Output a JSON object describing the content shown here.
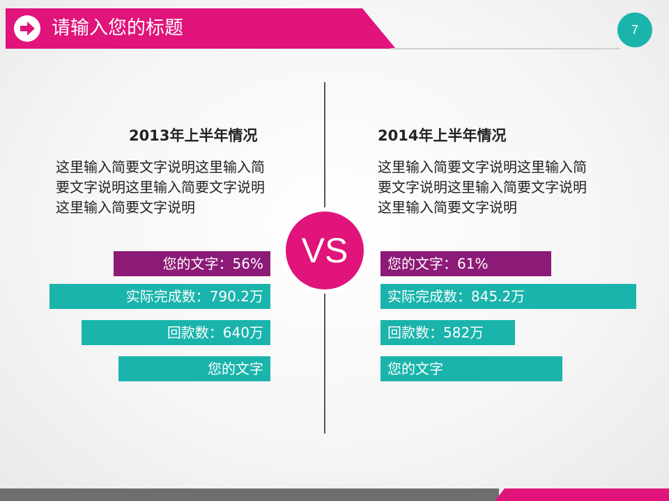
{
  "header": {
    "title": "请输入您的标题",
    "icon": "arrow-right-icon",
    "page_number": "7",
    "colors": {
      "accent": "#e0147a",
      "teal": "#1ab4ac",
      "purple": "#8c1a77"
    }
  },
  "vs_label": "VS",
  "left": {
    "title": "2013年上半年情况",
    "description": "这里输入简要文字说明这里输入简要文字说明这里输入简要文字说明这里输入简要文字说明",
    "bars": [
      {
        "label": "您的文字：56%",
        "color": "#8c1a77"
      },
      {
        "label": "实际完成数：790.2万",
        "color": "#1ab4ac"
      },
      {
        "label": "回款数：640万",
        "color": "#1ab4ac"
      },
      {
        "label": "您的文字",
        "color": "#1ab4ac"
      }
    ]
  },
  "right": {
    "title": "2014年上半年情况",
    "description": "这里输入简要文字说明这里输入简要文字说明这里输入简要文字说明这里输入简要文字说明",
    "bars": [
      {
        "label": "您的文字：61%",
        "color": "#8c1a77"
      },
      {
        "label": "实际完成数：845.2万",
        "color": "#1ab4ac"
      },
      {
        "label": "回款数：582万",
        "color": "#1ab4ac"
      },
      {
        "label": "您的文字",
        "color": "#1ab4ac"
      }
    ]
  }
}
